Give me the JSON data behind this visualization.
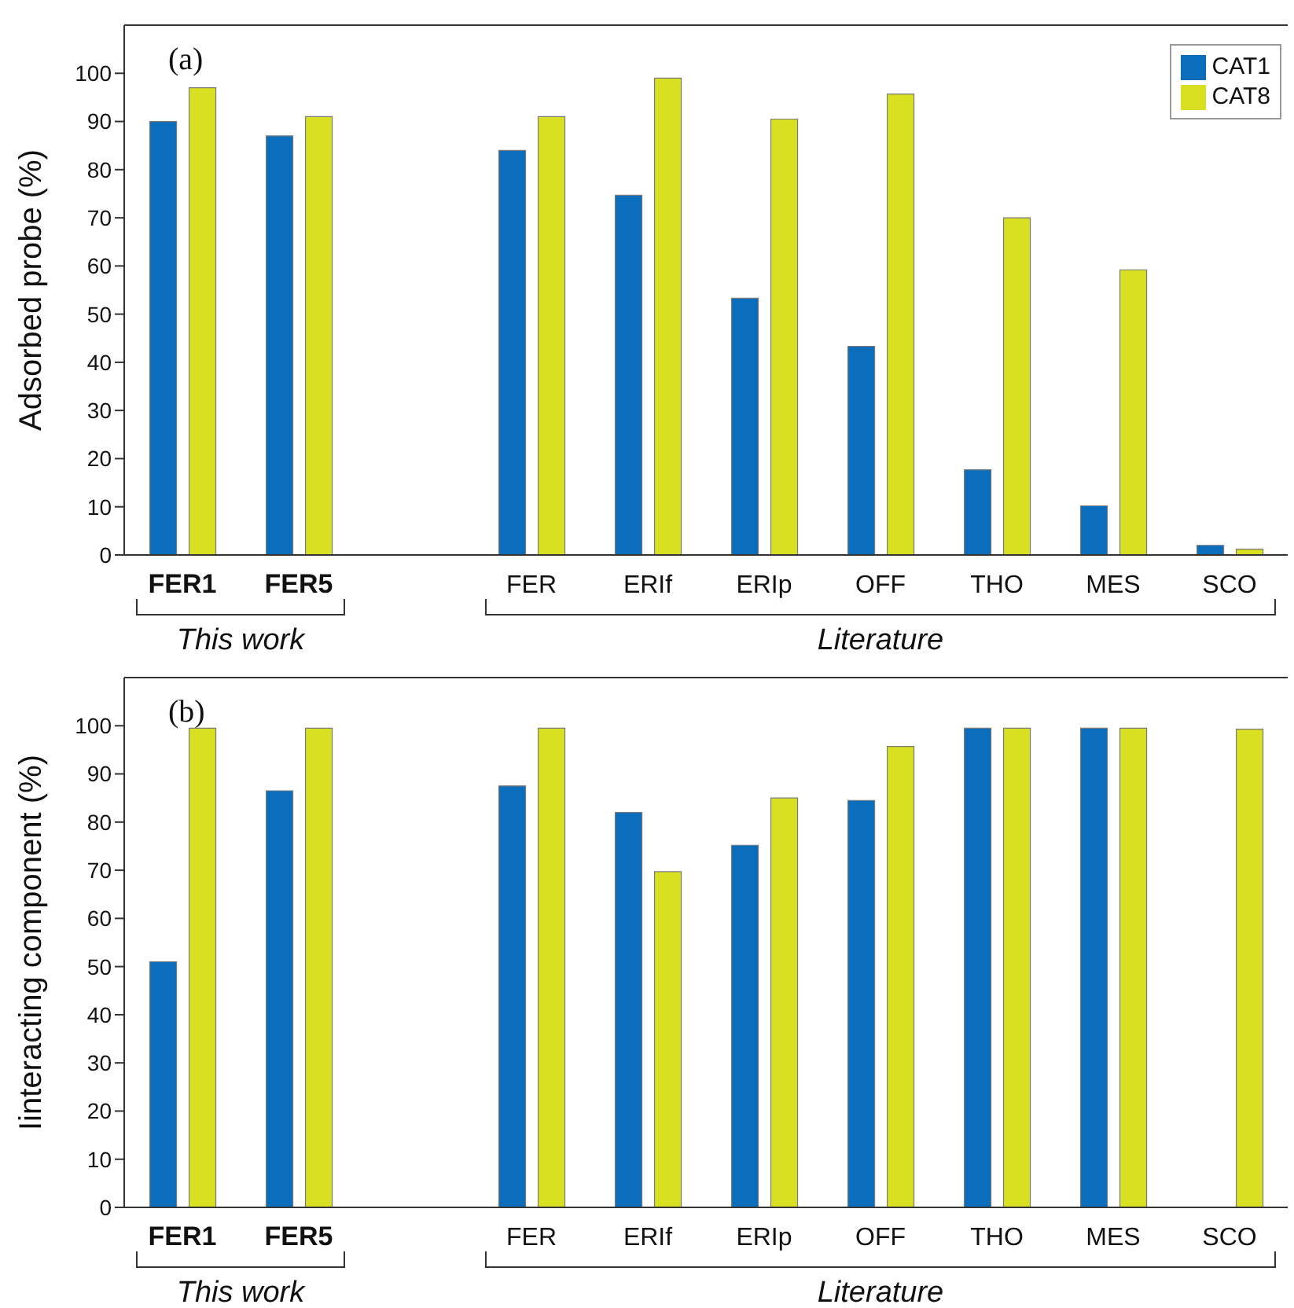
{
  "chart_data": [
    {
      "type": "bar",
      "ylabel": "Adsorbed probe (%)",
      "categories": [
        "FER1",
        "FER5",
        null,
        "FER",
        "ERIf",
        "ERIp",
        "OFF",
        "THO",
        "MES",
        "SCO"
      ],
      "series": [
        {
          "name": "CAT1",
          "color": "#0a6ebd",
          "values": [
            90,
            87,
            null,
            84,
            74.7,
            53.3,
            43.3,
            17.7,
            10.2,
            2
          ]
        },
        {
          "name": "CAT8",
          "color": "#d9e021",
          "values": [
            97,
            91,
            null,
            91,
            99,
            90.5,
            95.7,
            70,
            59.2,
            1.2
          ]
        }
      ],
      "ylim": [
        0,
        110
      ],
      "yticks": [
        0,
        10,
        20,
        30,
        40,
        50,
        60,
        70,
        80,
        90,
        100
      ],
      "grid": false,
      "legend": "top right",
      "annotations": [
        "(a)",
        "This work",
        "Literature"
      ]
    },
    {
      "type": "bar",
      "ylabel": "Iinteracting component (%)",
      "categories": [
        "FER1",
        "FER5",
        null,
        "FER",
        "ERIf",
        "ERIp",
        "OFF",
        "THO",
        "MES",
        "SCO"
      ],
      "series": [
        {
          "color": "#0a6ebd",
          "values": [
            51,
            86.5,
            null,
            87.5,
            82,
            75.2,
            84.5,
            99.5,
            99.5,
            null
          ]
        },
        {
          "color": "#d9e021",
          "values": [
            99.5,
            99.5,
            null,
            99.5,
            69.7,
            85,
            95.7,
            99.5,
            99.5,
            99.3
          ]
        }
      ],
      "ylim": [
        0,
        110
      ],
      "yticks": [
        0,
        10,
        20,
        30,
        40,
        50,
        60,
        70,
        80,
        90,
        100
      ],
      "grid": false,
      "legend": false,
      "annotations": [
        "(b)",
        "This work",
        "Literature"
      ]
    }
  ]
}
